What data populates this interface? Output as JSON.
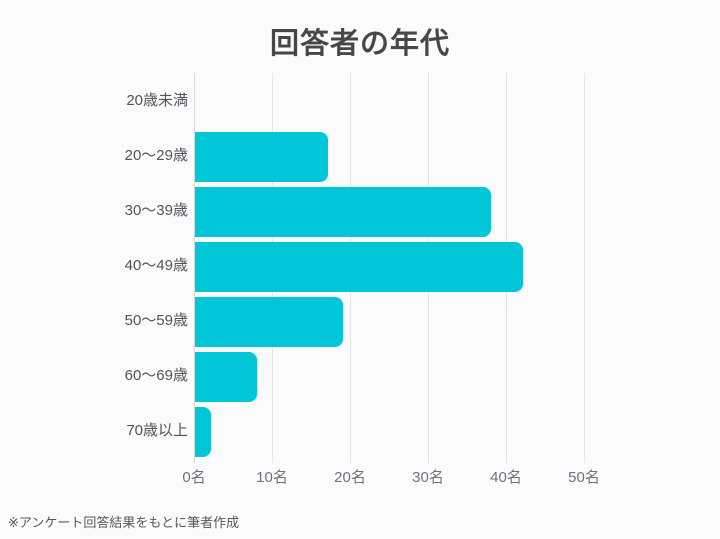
{
  "page": {
    "title": "回答者の年代",
    "footnote": "※アンケート回答結果をもとに筆者作成"
  },
  "colors": {
    "bar": "#00c6d8",
    "background": "#fafbfc",
    "gridline": "#e3e5e9",
    "axis_line": "#d6d9dc",
    "title_text": "#474747",
    "label_text": "#515559",
    "tick_text": "#6e7378",
    "footnote_text": "#55585c"
  },
  "chart_data": {
    "type": "bar",
    "orientation": "horizontal",
    "title": "回答者の年代",
    "categories": [
      "20歳未満",
      "20〜29歳",
      "30〜39歳",
      "40〜49歳",
      "50〜59歳",
      "60〜69歳",
      "70歳以上"
    ],
    "values": [
      0,
      17,
      38,
      42,
      19,
      8,
      2
    ],
    "unit": "名",
    "xlabel": "",
    "ylabel": "",
    "xlim": [
      0,
      50
    ],
    "x_ticks": [
      0,
      10,
      20,
      30,
      40,
      50
    ],
    "x_tick_labels": [
      "0名",
      "10名",
      "20名",
      "30名",
      "40名",
      "50名"
    ],
    "grid": "vertical-only",
    "legend": "none",
    "bar_corner_style": "rounded-right",
    "annotation": "※アンケート回答結果をもとに筆者作成"
  }
}
